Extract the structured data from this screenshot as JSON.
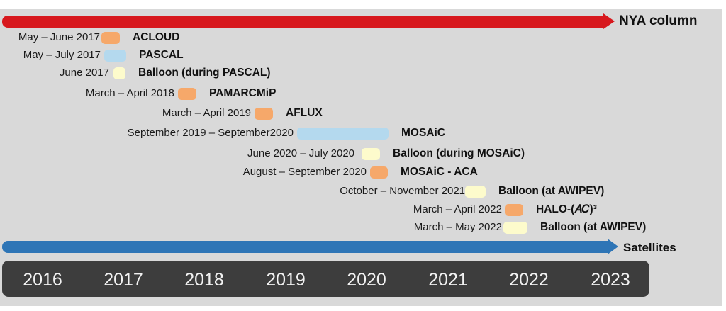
{
  "top_arrow": {
    "label": "NYA column",
    "color": "#d7181d"
  },
  "bottom_arrow": {
    "label": "Satellites",
    "color": "#2e75b6"
  },
  "colors": {
    "orange": "#f6a86a",
    "blue": "#b4d9ee",
    "yellow": "#fdfbcc",
    "panel": "#d9d9d9",
    "year_bar": "#3d3d3d"
  },
  "years": [
    "2016",
    "2017",
    "2018",
    "2019",
    "2020",
    "2021",
    "2022",
    "2023"
  ],
  "campaigns": [
    {
      "date": "May – June 2017",
      "name": "ACLOUD",
      "kind": "orange"
    },
    {
      "date": "May – July 2017",
      "name": "PASCAL",
      "kind": "blue"
    },
    {
      "date": "June 2017",
      "name": "Balloon (during PASCAL)",
      "kind": "yellow"
    },
    {
      "date": "March – April 2018",
      "name": "PAMARCMiP",
      "kind": "orange"
    },
    {
      "date": "March – April 2019",
      "name": "AFLUX",
      "kind": "orange"
    },
    {
      "date": "September 2019 – September2020",
      "name": "MOSAiC",
      "kind": "blue"
    },
    {
      "date": "June 2020 – July 2020",
      "name": "Balloon (during MOSAiC)",
      "kind": "yellow"
    },
    {
      "date": "August – September 2020",
      "name": "MOSAiC - ACA",
      "kind": "orange"
    },
    {
      "date": "October – November 2021",
      "name": "Balloon (at AWIPEV)",
      "kind": "yellow"
    },
    {
      "date": "March – April 2022",
      "name": "HALO-(𝐴𝐶)³",
      "kind": "orange"
    },
    {
      "date": "March – May 2022",
      "name": "Balloon (at AWIPEV)",
      "kind": "yellow"
    }
  ]
}
